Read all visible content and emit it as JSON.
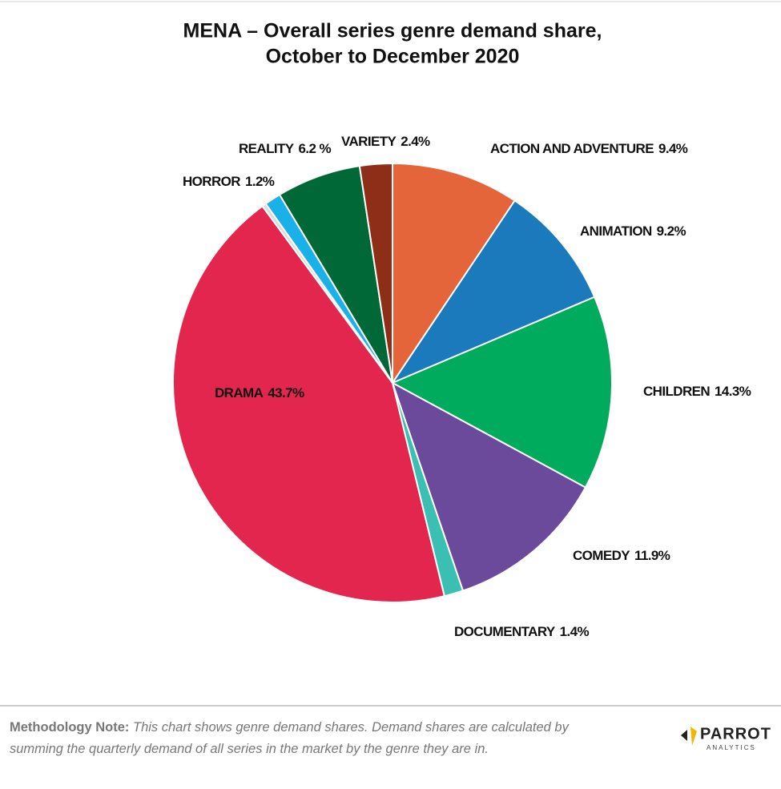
{
  "chart_data": {
    "type": "pie",
    "title": [
      "MENA – Overall series genre demand share,",
      "October to December 2020"
    ],
    "categories": [
      "ACTION AND ADVENTURE",
      "ANIMATION",
      "CHILDREN",
      "COMEDY",
      "DOCUMENTARY",
      "DRAMA",
      null,
      "HORROR",
      "REALITY",
      "VARIETY"
    ],
    "values": [
      9.4,
      9.2,
      14.3,
      11.9,
      1.4,
      43.7,
      0.3,
      1.2,
      6.2,
      2.4
    ],
    "value_labels": [
      "9.4%",
      "9.2%",
      "14.3%",
      "11.9%",
      "1.4%",
      "43.7%",
      null,
      "1.2%",
      "6.2 %",
      "2.4%"
    ],
    "colors": [
      "#e5653a",
      "#1a7abb",
      "#00ab5e",
      "#6b4a9b",
      "#3bbfb3",
      "#e3264d",
      "#d9d9d9",
      "#1ab0e8",
      "#006837",
      "#8f2e18"
    ]
  },
  "footer": {
    "note_label": "Methodology Note:",
    "note_text": "This chart shows genre demand shares. Demand shares are calculated by summing the quarterly demand of all series in the market by the genre they are in.",
    "logo": {
      "name": "PARROT",
      "tagline": "ANALYTICS"
    }
  }
}
